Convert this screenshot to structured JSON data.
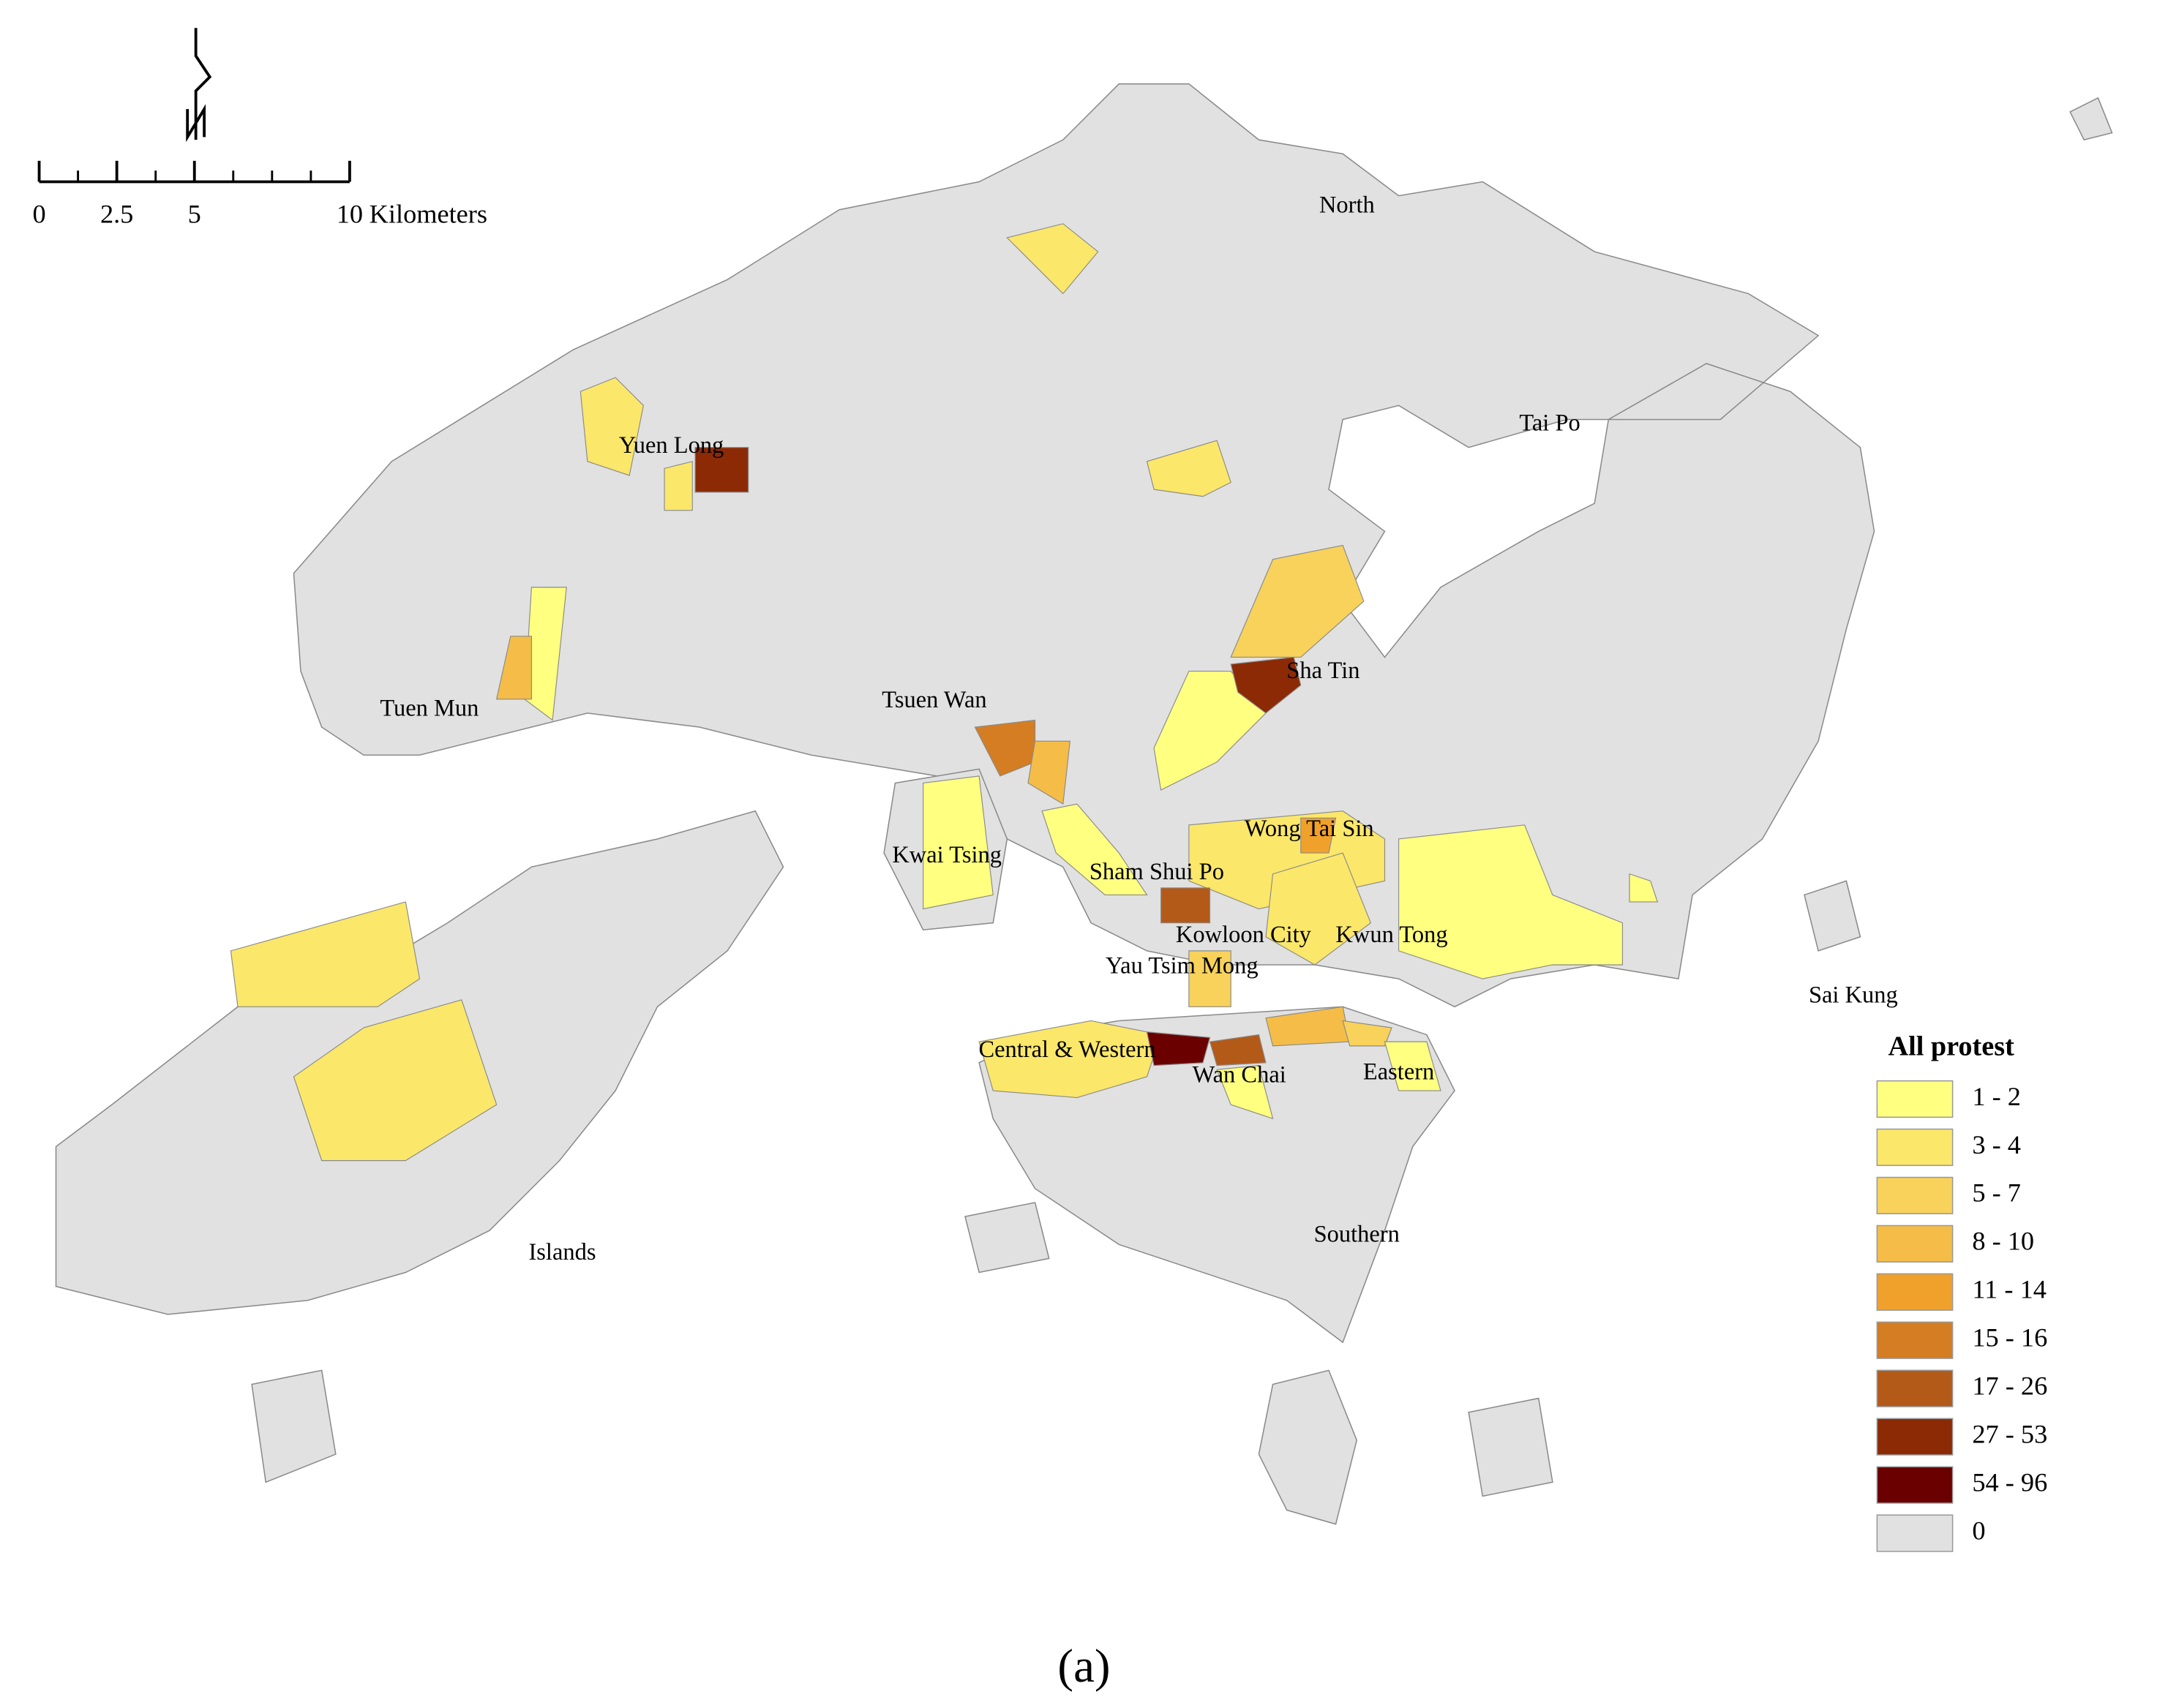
{
  "scale_bar": {
    "ticks": [
      0,
      2.5,
      5,
      10
    ],
    "unit": "Kilometers"
  },
  "districts": [
    "North",
    "Tai Po",
    "Yuen Long",
    "Tuen Mun",
    "Sha Tin",
    "Tsuen Wan",
    "Kwai Tsing",
    "Sham Shui Po",
    "Wong Tai Sin",
    "Kowloon City",
    "Kwun Tong",
    "Yau Tsim Mong",
    "Central & Western",
    "Wan Chai",
    "Eastern",
    "Sai Kung",
    "Southern",
    "Islands"
  ],
  "legend": {
    "title": "All protest",
    "items": [
      {
        "label": "1 - 2",
        "color": "#ffff80"
      },
      {
        "label": "3 - 4",
        "color": "#fbe76a"
      },
      {
        "label": "5 - 7",
        "color": "#f8d25a"
      },
      {
        "label": "8 - 10",
        "color": "#f5bd47"
      },
      {
        "label": "11 - 14",
        "color": "#f0a12c"
      },
      {
        "label": "15 - 16",
        "color": "#d47d22"
      },
      {
        "label": "17 - 26",
        "color": "#b45a18"
      },
      {
        "label": "27 - 53",
        "color": "#8c2a06"
      },
      {
        "label": "54 - 96",
        "color": "#6b0000"
      },
      {
        "label": "0",
        "color": "#e1e1e1"
      }
    ]
  },
  "caption": "(a)"
}
